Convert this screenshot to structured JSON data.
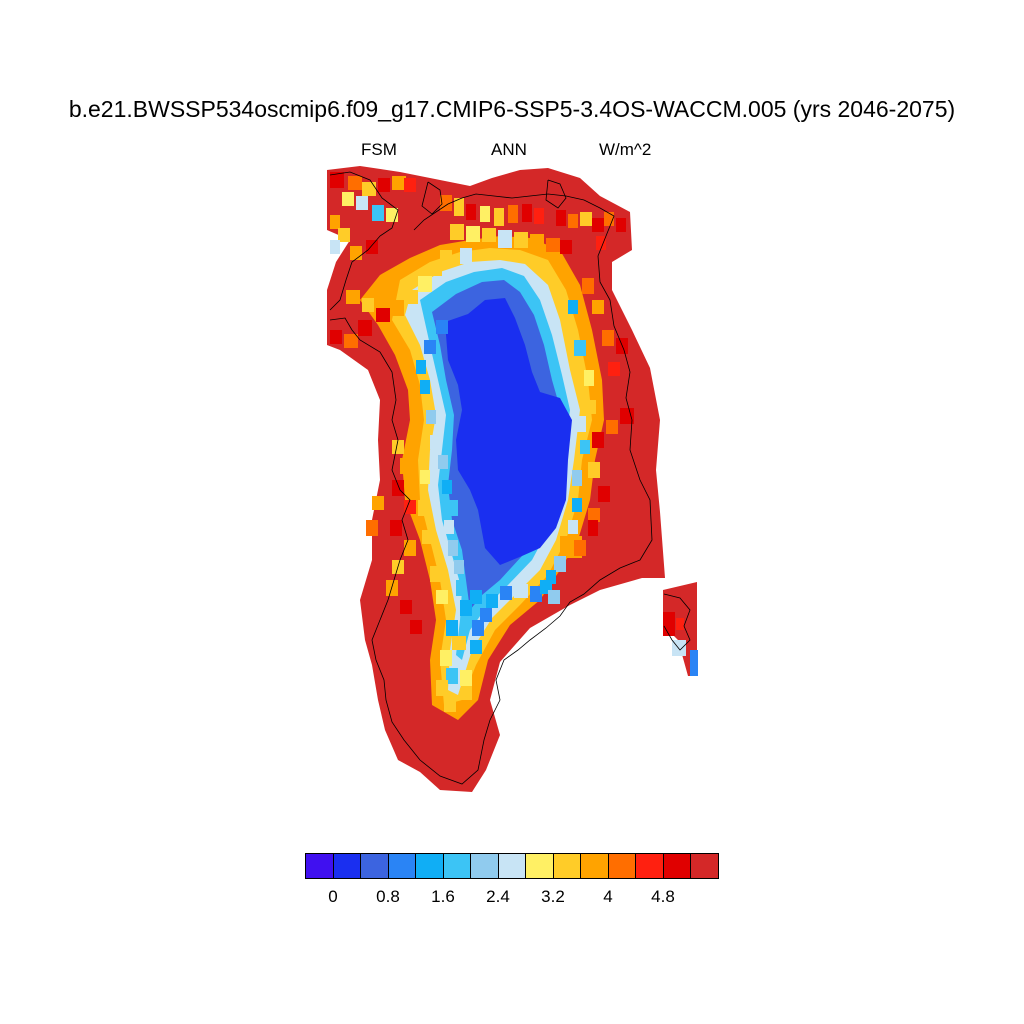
{
  "title": "b.e21.BWSSP534oscmip6.f09_g17.CMIP6-SSP5-3.4OS-WACCM.005 (yrs 2046-2075)",
  "subtitle": {
    "left": "FSM",
    "center": "ANN",
    "right": "W/m^2"
  },
  "colorbar": {
    "colors": [
      "#4010f0",
      "#1a2ff0",
      "#3c64e0",
      "#2a84f5",
      "#10aef5",
      "#3cc4f5",
      "#90cbee",
      "#c8e4f5",
      "#fff064",
      "#ffcc28",
      "#ffa300",
      "#ff6e00",
      "#ff2010",
      "#e00000",
      "#d42828"
    ],
    "tick_labels": [
      "0",
      "0.8",
      "1.6",
      "2.4",
      "3.2",
      "4",
      "4.8"
    ]
  },
  "map": {
    "region": "Greenland",
    "levels": [
      0,
      0.4,
      0.8,
      1.2,
      1.6,
      2.0,
      2.4,
      2.8,
      3.2,
      3.6,
      4.0,
      4.4,
      4.8,
      5.2
    ],
    "dominant_interior_value_range": [
      0.4,
      0.8
    ],
    "dominant_margin_value_range": [
      5.2,
      6.0
    ]
  }
}
